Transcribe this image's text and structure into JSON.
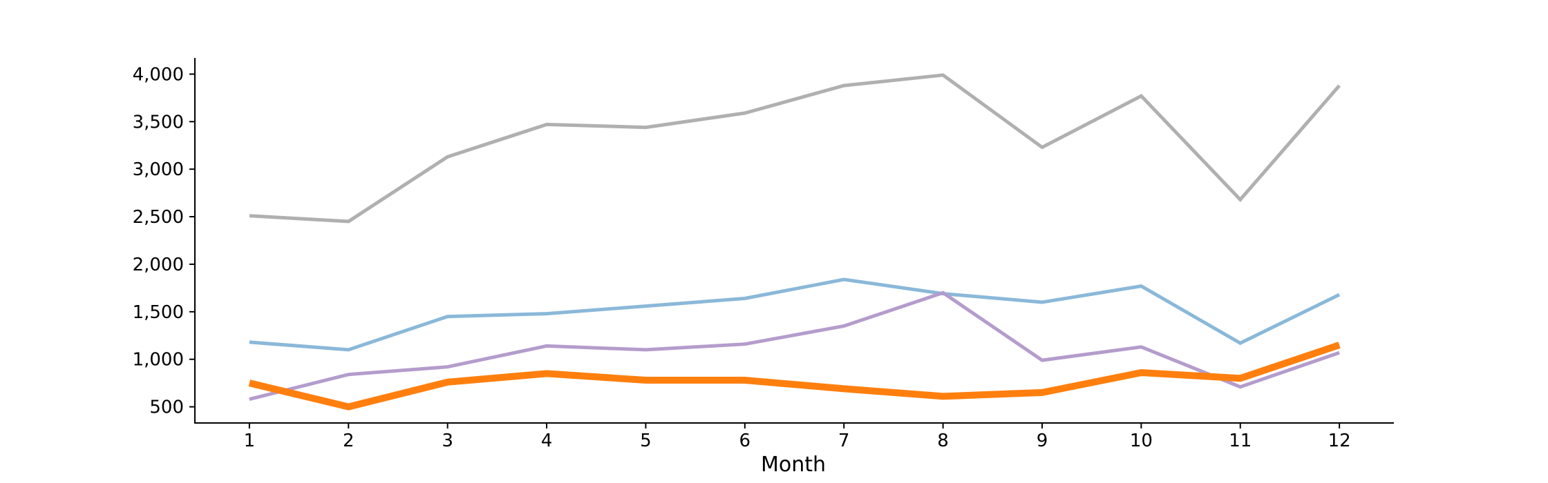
{
  "chart_data": {
    "type": "line",
    "title": "",
    "xlabel": "Month",
    "ylabel": "",
    "x": [
      1,
      2,
      3,
      4,
      5,
      6,
      7,
      8,
      9,
      10,
      11,
      12
    ],
    "x_tick_labels": [
      "1",
      "2",
      "3",
      "4",
      "5",
      "6",
      "7",
      "8",
      "9",
      "10",
      "11",
      "12"
    ],
    "y_ticks": [
      500,
      1000,
      1500,
      2000,
      2500,
      3000,
      3500,
      4000
    ],
    "y_tick_labels": [
      "500",
      "1,000",
      "1,500",
      "2,000",
      "2,500",
      "3,000",
      "3,500",
      "4,000"
    ],
    "xlim": [
      0.45,
      12.55
    ],
    "ylim": [
      330,
      4170
    ],
    "grid": false,
    "legend": "none",
    "series": [
      {
        "color": "#b0b0b0",
        "emphasis": false,
        "values": [
          2510,
          2450,
          3130,
          3470,
          3440,
          3590,
          3880,
          3990,
          3230,
          3770,
          2680,
          3880
        ]
      },
      {
        "color": "#8ab8d9",
        "emphasis": false,
        "values": [
          1180,
          1100,
          1450,
          1480,
          1560,
          1640,
          1840,
          1690,
          1600,
          1770,
          1170,
          1680
        ]
      },
      {
        "color": "#b49ccc",
        "emphasis": false,
        "values": [
          580,
          840,
          920,
          1140,
          1100,
          1160,
          1350,
          1700,
          990,
          1130,
          710,
          1070
        ]
      },
      {
        "color": "#ff7f0e",
        "emphasis": true,
        "values": [
          750,
          500,
          760,
          850,
          780,
          780,
          690,
          610,
          650,
          860,
          800,
          1150
        ]
      }
    ]
  }
}
